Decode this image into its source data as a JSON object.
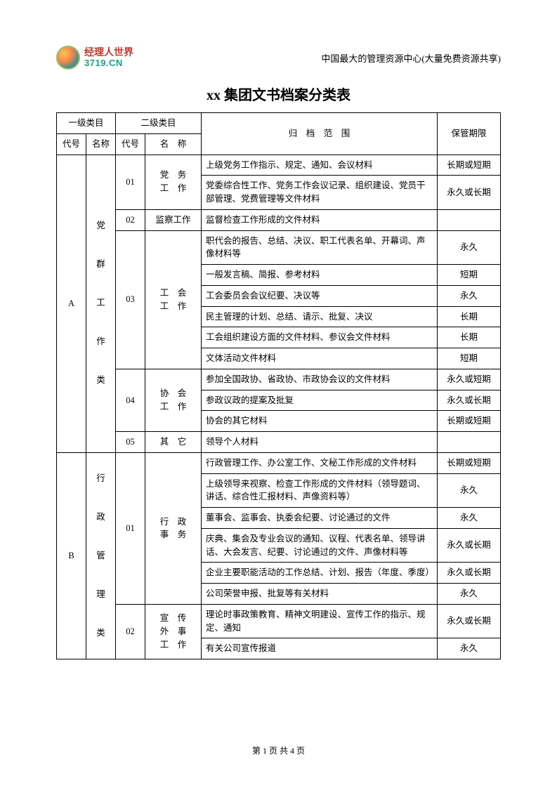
{
  "logo": {
    "cn": "经理人世界",
    "en": "3719.CN"
  },
  "header_subtitle": "中国最大的管理资源中心(大量免费资源共享)",
  "title": "xx 集团文书档案分类表",
  "columns": {
    "level1": "一级类目",
    "level2": "二级类目",
    "code": "代号",
    "name": "名称",
    "name2": "名　称",
    "scope": "归　档　范　围",
    "period": "保管期限"
  },
  "rows": [
    {
      "l1code": "A",
      "l1name": "党\n\n群\n\n工\n\n作\n\n类",
      "l2code": "01",
      "l2name": "党　务\n工　作",
      "scope": "上级党务工作指示、规定、通知、会议材料",
      "period": "长期或短期"
    },
    {
      "scope": "党委综合性工作、党务工作会议记录、组织建设、党员干部管理、党费管理等文件材料",
      "period": "永久或长期"
    },
    {
      "l2code": "02",
      "l2name": "监察工作",
      "scope": "监督检查工作形成的文件材料",
      "period": ""
    },
    {
      "l2code": "03",
      "l2name": "工　会\n工　作",
      "scope": "职代会的报告、总结、决议、职工代表名单、开幕词、声像材料等",
      "period": "永久"
    },
    {
      "scope": "一般发言稿、简报、参考材料",
      "period": "短期"
    },
    {
      "scope": "工会委员会会议纪要、决议等",
      "period": "永久"
    },
    {
      "scope": "民主管理的计划、总结、请示、批复、决议",
      "period": "长期"
    },
    {
      "scope": "工会组织建设方面的文件材料、参议会文件材料",
      "period": "长期"
    },
    {
      "scope": "文体活动文件材料",
      "period": "短期"
    },
    {
      "l2code": "04",
      "l2name": "协　会\n工　作",
      "scope": "参加全国政协、省政协、市政协会议的文件材料",
      "period": "永久或短期"
    },
    {
      "scope": "参政议政的提案及批复",
      "period": "永久或长期"
    },
    {
      "scope": "协会的其它材料",
      "period": "长期或短期"
    },
    {
      "l2code": "05",
      "l2name": "其　它",
      "scope": "领导个人材料",
      "period": ""
    },
    {
      "l1code": "B",
      "l1name": "行\n\n政\n\n管\n\n理\n\n类",
      "l2code": "01",
      "l2name": "行　政\n事　务",
      "scope": "行政管理工作、办公室工作、文秘工作形成的文件材料",
      "period": "长期或短期"
    },
    {
      "scope": "上级领导来视察、检查工作形成的文件材料（领导题词、讲话、综合性汇报材料、声像资料等）",
      "period": "永久"
    },
    {
      "scope": "董事会、监事会、执委会纪要、讨论通过的文件",
      "period": "永久"
    },
    {
      "scope": "庆典、集会及专业会议的通知、议程、代表名单、领导讲话、大会发言、纪要、讨论通过的文件、声像材料等",
      "period": "永久或长期"
    },
    {
      "scope": "企业主要职能活动的工作总结、计划、报告（年度、季度）",
      "period": "永久或长期"
    },
    {
      "scope": "公司荣誉申报、批复等有关材料",
      "period": "永久"
    },
    {
      "l2code": "02",
      "l2name": "宣　传\n外　事\n工　作",
      "scope": "理论时事政策教育、精神文明建设、宣传工作的指示、规定、通知",
      "period": "永久或长期"
    },
    {
      "scope": "有关公司宣传报道",
      "period": "永久"
    }
  ],
  "footer": "第 1 页 共 4 页"
}
